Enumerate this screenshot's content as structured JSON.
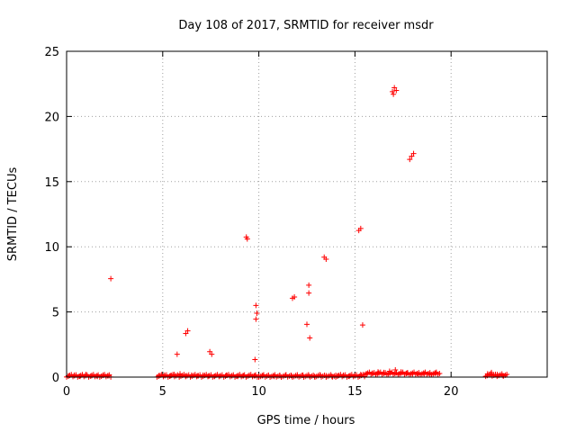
{
  "chart_data": {
    "type": "scatter",
    "title": "Day 108 of 2017, SRMTID for receiver msdr",
    "xlabel": "GPS time / hours",
    "ylabel": "SRMTID / TECUs",
    "xlim": [
      0,
      25
    ],
    "ylim": [
      0,
      25
    ],
    "xticks": [
      0,
      5,
      10,
      15,
      20
    ],
    "yticks": [
      0,
      5,
      10,
      15,
      20,
      25
    ],
    "grid": true,
    "marker": "plus",
    "color": "#ff0000",
    "series": [
      {
        "points": [
          [
            0.1,
            0.1
          ],
          [
            0.4,
            0.15
          ],
          [
            0.7,
            0.05
          ],
          [
            1.0,
            0.2
          ],
          [
            1.3,
            0.1
          ],
          [
            1.6,
            0.05
          ],
          [
            1.9,
            0.15
          ],
          [
            2.2,
            0.1
          ],
          [
            2.3,
            7.55
          ],
          [
            4.8,
            0.1
          ],
          [
            5.1,
            0.15
          ],
          [
            5.4,
            0.1
          ],
          [
            5.6,
            0.2
          ],
          [
            5.9,
            0.25
          ],
          [
            6.2,
            0.1
          ],
          [
            6.5,
            0.15
          ],
          [
            6.8,
            0.1
          ],
          [
            7.1,
            0.15
          ],
          [
            7.4,
            0.1
          ],
          [
            7.7,
            0.05
          ],
          [
            8.0,
            0.1
          ],
          [
            8.3,
            0.15
          ],
          [
            8.6,
            0.1
          ],
          [
            8.9,
            0.05
          ],
          [
            9.2,
            0.1
          ],
          [
            9.5,
            0.15
          ],
          [
            9.8,
            0.1
          ],
          [
            5.75,
            1.75
          ],
          [
            6.2,
            3.35
          ],
          [
            6.3,
            3.55
          ],
          [
            7.45,
            1.95
          ],
          [
            7.55,
            1.75
          ],
          [
            9.35,
            10.75
          ],
          [
            9.4,
            10.6
          ],
          [
            9.8,
            1.35
          ],
          [
            9.85,
            5.5
          ],
          [
            9.9,
            4.9
          ],
          [
            9.85,
            4.45
          ],
          [
            10.2,
            0.1
          ],
          [
            10.5,
            0.15
          ],
          [
            10.8,
            0.05
          ],
          [
            11.1,
            0.1
          ],
          [
            11.4,
            0.15
          ],
          [
            11.7,
            0.1
          ],
          [
            11.75,
            6.05
          ],
          [
            11.85,
            6.15
          ],
          [
            12.0,
            0.1
          ],
          [
            12.3,
            0.15
          ],
          [
            12.6,
            0.1
          ],
          [
            12.9,
            0.05
          ],
          [
            13.2,
            0.15
          ],
          [
            13.5,
            0.1
          ],
          [
            13.8,
            0.05
          ],
          [
            12.5,
            4.05
          ],
          [
            12.6,
            7.05
          ],
          [
            12.6,
            6.45
          ],
          [
            12.65,
            3.0
          ],
          [
            13.4,
            9.2
          ],
          [
            13.5,
            9.05
          ],
          [
            14.1,
            0.1
          ],
          [
            14.4,
            0.15
          ],
          [
            14.7,
            0.05
          ],
          [
            15.0,
            0.1
          ],
          [
            15.3,
            0.2
          ],
          [
            15.2,
            11.25
          ],
          [
            15.3,
            11.4
          ],
          [
            15.4,
            4.0
          ],
          [
            15.6,
            0.25
          ],
          [
            15.9,
            0.3
          ],
          [
            16.2,
            0.4
          ],
          [
            16.5,
            0.35
          ],
          [
            16.8,
            0.45
          ],
          [
            17.1,
            0.55
          ],
          [
            17.4,
            0.4
          ],
          [
            17.7,
            0.3
          ],
          [
            18.0,
            0.25
          ],
          [
            18.3,
            0.2
          ],
          [
            18.6,
            0.25
          ],
          [
            18.9,
            0.2
          ],
          [
            19.2,
            0.3
          ],
          [
            16.95,
            21.9
          ],
          [
            17.05,
            22.2
          ],
          [
            17.15,
            22.0
          ],
          [
            17.0,
            21.7
          ],
          [
            17.85,
            16.7
          ],
          [
            17.95,
            16.95
          ],
          [
            18.05,
            17.15
          ],
          [
            21.9,
            0.25
          ],
          [
            22.1,
            0.35
          ],
          [
            22.4,
            0.2
          ],
          [
            22.7,
            0.1
          ]
        ],
        "segments": [
          [
            0.0,
            2.3,
            0.1
          ],
          [
            4.7,
            10.0,
            0.1
          ],
          [
            10.0,
            14.0,
            0.08
          ],
          [
            14.0,
            15.5,
            0.1
          ],
          [
            15.5,
            19.4,
            0.28
          ],
          [
            21.8,
            22.9,
            0.15
          ]
        ]
      }
    ]
  }
}
